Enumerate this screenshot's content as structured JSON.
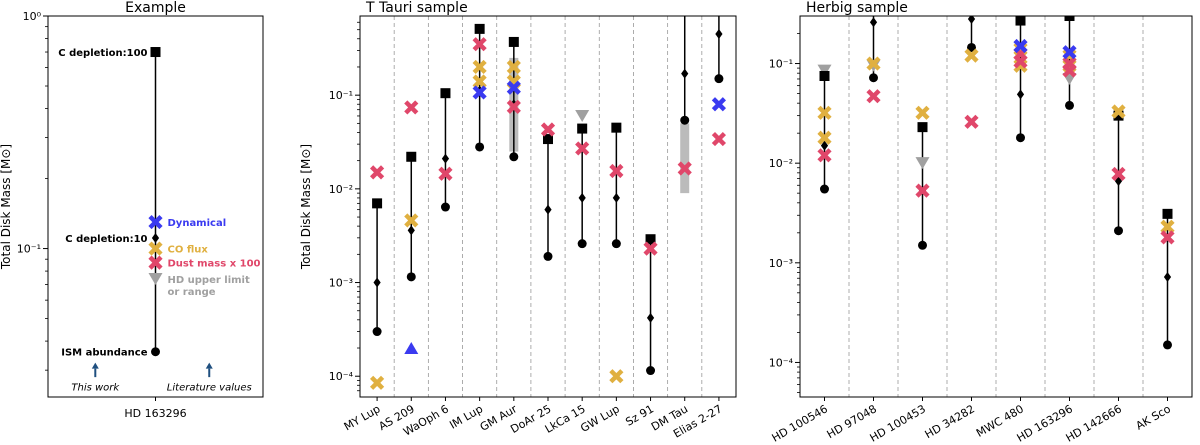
{
  "colors": {
    "black": "#000000",
    "dynamical": "#3a3af0",
    "co_flux": "#e0b040",
    "dust": "#e0476a",
    "hd": "#a0a0a0",
    "grid": "#999999"
  },
  "chart_data": [
    {
      "type": "scatter",
      "title": "Example",
      "ylabel": "Total Disk Mass [M⊙]",
      "yscale": "log",
      "ylim": [
        0.023,
        1.0
      ],
      "yticks": [
        {
          "value": 1,
          "label": "10⁰"
        },
        {
          "value": 0.1,
          "label": "10⁻¹"
        }
      ],
      "categories": [
        "HD 163296"
      ],
      "line": {
        "from": 0.036,
        "to": 0.7
      },
      "markers": [
        {
          "shape": "square",
          "color": "black",
          "y": 0.7,
          "label": "C depletion:100",
          "label_color": "black"
        },
        {
          "shape": "x",
          "color": "dynamical",
          "y": 0.13,
          "label": "Dynamical",
          "label_color": "dynamical"
        },
        {
          "shape": "diamond",
          "color": "black",
          "y": 0.111,
          "label": "C depletion:10",
          "label_color": "black"
        },
        {
          "shape": "x",
          "color": "co_flux",
          "y": 0.1,
          "label": "CO flux",
          "label_color": "co_flux"
        },
        {
          "shape": "x",
          "color": "dust",
          "y": 0.087,
          "label": "Dust mass x 100",
          "label_color": "dust"
        },
        {
          "shape": "tri_down",
          "color": "hd",
          "y": 0.074,
          "label": "HD upper limit",
          "label_color": "hd"
        },
        {
          "shape": "circle",
          "color": "black",
          "y": 0.036,
          "label": "ISM abundance",
          "label_color": "black"
        }
      ],
      "extra_label": "or range",
      "annotations": [
        {
          "text": "This work",
          "x": 0.22,
          "arrow_top": 0.032,
          "arrow_bottom": 0.028,
          "text_y": 0.0255
        },
        {
          "text": "Literature values",
          "x": 0.75,
          "arrow_top": 0.032,
          "arrow_bottom": 0.028,
          "text_y": 0.0255
        }
      ]
    },
    {
      "type": "scatter",
      "title": "T Tauri sample",
      "ylabel": "Total Disk Mass [M⊙]",
      "yscale": "log",
      "ylim": [
        6e-05,
        0.7
      ],
      "yticks": [
        {
          "value": 0.0001,
          "label": "10⁻⁴"
        },
        {
          "value": 0.001,
          "label": "10⁻³"
        },
        {
          "value": 0.01,
          "label": "10⁻²"
        },
        {
          "value": 0.1,
          "label": "10⁻¹"
        }
      ],
      "categories": [
        "MY Lup",
        "AS 209",
        "WaOph 6",
        "IM Lup",
        "GM Aur",
        "DoAr 25",
        "LkCa 15",
        "GW Lup",
        "Sz 91",
        "DM Tau",
        "Elias 2-27"
      ],
      "sources": [
        {
          "line": [
            0.0003,
            0.007
          ],
          "square": 0.007,
          "diamond": 0.001,
          "circle": 0.0003,
          "dust": 0.015,
          "co": 8.5e-05
        },
        {
          "line": [
            0.00115,
            0.022
          ],
          "square": 0.022,
          "diamond": 0.0036,
          "circle": 0.00115,
          "dust": 0.074,
          "co": 0.0046,
          "dyn_tri_up": 0.0002
        },
        {
          "line": [
            0.0064,
            0.105
          ],
          "square": 0.105,
          "diamond": 0.021,
          "circle": 0.0064,
          "dust": 0.0145
        },
        {
          "line": [
            0.028,
            0.51
          ],
          "square": 0.51,
          "diamond": 0.112,
          "circle": 0.028,
          "dust": 0.35,
          "co_list": [
            0.2,
            0.14
          ],
          "dyn": 0.107
        },
        {
          "line": [
            0.022,
            0.37
          ],
          "square": 0.37,
          "diamond": 0.08,
          "circle": 0.022,
          "dust": 0.075,
          "co_list": [
            0.2,
            0.14
          ],
          "dyn": 0.12,
          "range": [
            0.025,
            0.25
          ]
        },
        {
          "line": [
            0.0019,
            0.034
          ],
          "square": 0.034,
          "diamond": 0.006,
          "circle": 0.0019,
          "dust": 0.043
        },
        {
          "line": [
            0.0026,
            0.044
          ],
          "square": 0.044,
          "diamond": 0.008,
          "circle": 0.0026,
          "dust": 0.027,
          "hd_tri_down": 0.06
        },
        {
          "line": [
            0.0026,
            0.045
          ],
          "square": 0.045,
          "diamond": 0.008,
          "circle": 0.0026,
          "dust": 0.0155,
          "co": 0.0001
        },
        {
          "line": [
            0.000115,
            0.0029
          ],
          "square": 0.0029,
          "diamond": 0.00042,
          "circle": 0.000115,
          "dust": 0.0023
        },
        {
          "line": [
            0.054,
            0.7
          ],
          "diamond": 0.17,
          "circle": 0.054,
          "dust": 0.0165,
          "range": [
            0.009,
            0.05
          ]
        },
        {
          "line": [
            0.15,
            0.7
          ],
          "diamond": 0.45,
          "circle": 0.15,
          "dust": 0.034,
          "dyn": 0.08
        }
      ]
    },
    {
      "type": "scatter",
      "title": "Herbig sample",
      "ylabel": "",
      "yscale": "log",
      "ylim": [
        4.5e-05,
        0.3
      ],
      "yticks": [
        {
          "value": 0.0001,
          "label": "10⁻⁴"
        },
        {
          "value": 0.001,
          "label": "10⁻³"
        },
        {
          "value": 0.01,
          "label": "10⁻²"
        },
        {
          "value": 0.1,
          "label": "10⁻¹"
        }
      ],
      "categories": [
        "HD 100546",
        "HD 97048",
        "HD 100453",
        "HD 34282",
        "MWC 480",
        "HD 163296",
        "HD 142666",
        "AK Sco"
      ],
      "sources": [
        {
          "line": [
            0.0055,
            0.075
          ],
          "square": 0.075,
          "diamond": 0.015,
          "circle": 0.0055,
          "dust": 0.012,
          "co_list": [
            0.032,
            0.018
          ],
          "hd_tri_down": 0.085
        },
        {
          "line": [
            0.072,
            0.3
          ],
          "diamond": 0.26,
          "circle": 0.072,
          "dust": 0.047,
          "co": 0.1,
          "hd_tri_down": 0.095
        },
        {
          "line": [
            0.0015,
            0.023
          ],
          "square": 0.023,
          "diamond": 0.0053,
          "circle": 0.0015,
          "dust": 0.0053,
          "co": 0.032,
          "hd_tri_down": 0.01
        },
        {
          "line": [
            0.145,
            0.3
          ],
          "diamond": 0.28,
          "circle": 0.145,
          "dust": 0.026,
          "co": 0.12
        },
        {
          "line": [
            0.018,
            0.27
          ],
          "square": 0.27,
          "diamond": 0.049,
          "circle": 0.018,
          "dust_list": [
            0.125,
            0.105
          ],
          "co_list": [
            0.14,
            0.095
          ],
          "dyn": 0.15
        },
        {
          "line": [
            0.038,
            0.3
          ],
          "square": 0.3,
          "diamond": 0.11,
          "circle": 0.038,
          "dust_list": [
            0.1,
            0.085
          ],
          "co_list": [
            0.12,
            0.095
          ],
          "dyn": 0.13,
          "hd_tri_down": 0.07
        },
        {
          "line": [
            0.0021,
            0.03
          ],
          "square": 0.03,
          "diamond": 0.0066,
          "circle": 0.0021,
          "dust": 0.0078,
          "co": 0.033
        },
        {
          "line": [
            0.00015,
            0.0031
          ],
          "square": 0.0031,
          "diamond": 0.00072,
          "circle": 0.00015,
          "dust": 0.0018,
          "co": 0.0023
        }
      ]
    }
  ]
}
